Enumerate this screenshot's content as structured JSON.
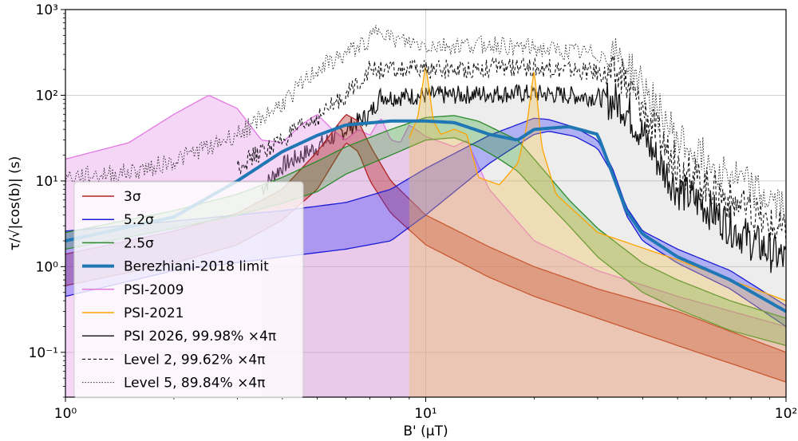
{
  "chart_data": {
    "type": "line",
    "title": "",
    "xlabel": "B' (μT)",
    "ylabel": "τ/√|cos(b)| (s)",
    "xscale": "log",
    "yscale": "log",
    "xlim": [
      1,
      100
    ],
    "ylim": [
      0.03,
      1000
    ],
    "grid": true,
    "legend_position": "bottom-left",
    "x_ticks": [
      {
        "value": 1,
        "label": "10⁰"
      },
      {
        "value": 10,
        "label": "10¹"
      },
      {
        "value": 100,
        "label": "10²"
      }
    ],
    "y_ticks": [
      {
        "value": 0.1,
        "label": "10⁻¹"
      },
      {
        "value": 1,
        "label": "10⁰"
      },
      {
        "value": 10,
        "label": "10¹"
      },
      {
        "value": 100,
        "label": "10²"
      },
      {
        "value": 1000,
        "label": "10³"
      }
    ],
    "series": [
      {
        "name": "3σ",
        "kind": "band",
        "color": "#b22222",
        "fill": "#b22222",
        "fill_opacity": 0.38,
        "x": [
          1,
          2,
          3,
          4,
          5,
          6,
          6.5,
          7,
          8,
          10,
          15,
          20,
          30,
          50,
          100
        ],
        "upper": [
          1.4,
          2.6,
          4.2,
          8,
          22,
          60,
          50,
          26,
          10,
          4,
          1.7,
          1.0,
          0.55,
          0.3,
          0.1
        ],
        "lower": [
          0.6,
          1.1,
          1.8,
          3.5,
          8,
          28,
          22,
          10,
          4.2,
          1.8,
          0.75,
          0.45,
          0.25,
          0.12,
          0.045
        ]
      },
      {
        "name": "5.2σ",
        "kind": "band",
        "color": "#1a1ad6",
        "fill": "#3b3bff",
        "fill_opacity": 0.35,
        "x": [
          1,
          2,
          4,
          6,
          8,
          10,
          15,
          20,
          22,
          26,
          30,
          33,
          36,
          40,
          50,
          70,
          100
        ],
        "upper": [
          2.6,
          3.4,
          4.5,
          5.6,
          8,
          14,
          34,
          54,
          52,
          42,
          30,
          14,
          5,
          2.6,
          1.6,
          0.9,
          0.35
        ],
        "lower": [
          0.45,
          0.9,
          1.3,
          1.6,
          2,
          4,
          16,
          35,
          38,
          33,
          24,
          12,
          4,
          2.0,
          1.1,
          0.55,
          0.2
        ]
      },
      {
        "name": "2.5σ",
        "kind": "band",
        "color": "#2a8a2a",
        "fill": "#2ca02c",
        "fill_opacity": 0.3,
        "x": [
          1,
          2,
          3,
          4,
          5,
          6,
          8,
          10,
          12,
          14,
          16,
          18,
          20,
          25,
          30,
          40,
          50,
          70,
          100
        ],
        "upper": [
          2.5,
          4.5,
          7,
          11,
          17,
          25,
          40,
          55,
          58,
          50,
          38,
          30,
          18,
          6,
          2.8,
          1.1,
          0.7,
          0.4,
          0.25
        ],
        "lower": [
          1.6,
          2.8,
          4,
          5.5,
          7.5,
          12,
          20,
          30,
          32,
          25,
          18,
          13,
          8,
          3,
          1.3,
          0.5,
          0.32,
          0.18,
          0.12
        ]
      },
      {
        "name": "Berezhiani-2018 limit",
        "kind": "line",
        "color": "#1f77b4",
        "width": 4,
        "x": [
          1,
          2,
          3,
          4,
          5,
          6,
          8,
          10,
          12,
          15,
          18,
          20,
          25,
          30,
          33,
          36,
          40,
          50,
          70,
          100
        ],
        "y": [
          2,
          3.8,
          10,
          22,
          34,
          45,
          50,
          50,
          48,
          35,
          30,
          40,
          43,
          35,
          12,
          4.5,
          2.4,
          1.3,
          0.7,
          0.3
        ]
      },
      {
        "name": "PSI-2009",
        "kind": "fill_area",
        "color": "#e377e3",
        "fill": "#e58ae5",
        "fill_opacity": 0.35,
        "x": [
          1,
          1.5,
          2,
          2.5,
          3,
          3.5,
          4,
          4.5,
          5,
          5.5,
          6,
          6.5,
          7,
          7.5,
          8,
          8.5,
          9,
          10,
          12,
          13,
          14,
          15,
          20,
          30,
          50,
          100
        ],
        "y": [
          18,
          28,
          60,
          100,
          70,
          30,
          28,
          45,
          60,
          40,
          30,
          40,
          34,
          55,
          30,
          28,
          45,
          33,
          25,
          30,
          15,
          8,
          2,
          0.9,
          0.45,
          0.2
        ]
      },
      {
        "name": "PSI-2021",
        "kind": "fill_area",
        "color": "#ffa500",
        "fill": "#f0c050",
        "fill_opacity": 0.35,
        "x": [
          9,
          9.5,
          10,
          10.5,
          11,
          12,
          13,
          14,
          16,
          18,
          19,
          20,
          21,
          23,
          30,
          50,
          70,
          100
        ],
        "y": [
          32,
          55,
          230,
          50,
          35,
          40,
          35,
          11,
          9,
          16,
          40,
          200,
          25,
          7,
          2.5,
          1.2,
          0.7,
          0.4
        ]
      },
      {
        "name": "PSI 2026, 99.98% ×4π",
        "kind": "noisy_line",
        "color": "#111111",
        "fill": "#9a9a9a",
        "fill_opacity": 0.18,
        "width": 1.3,
        "dash": "",
        "x": [
          3.5,
          4,
          5,
          6,
          7,
          7.5,
          8,
          10,
          12,
          15,
          20,
          25,
          30,
          35,
          40,
          45,
          50,
          60,
          70,
          80,
          90,
          100
        ],
        "y": [
          8,
          15,
          25,
          40,
          60,
          100,
          95,
          100,
          100,
          105,
          105,
          100,
          95,
          80,
          35,
          15,
          8,
          5,
          3,
          2,
          1.5,
          1.2
        ]
      },
      {
        "name": "Level 2, 99.62% ×4π",
        "kind": "noisy_line",
        "color": "#111111",
        "width": 1.1,
        "dash": "4,3",
        "x": [
          3,
          4,
          5,
          6,
          7,
          8,
          10,
          12,
          15,
          20,
          25,
          30,
          35,
          40,
          45,
          50,
          60,
          70,
          80,
          90,
          100
        ],
        "y": [
          15,
          30,
          55,
          100,
          200,
          195,
          200,
          200,
          210,
          210,
          200,
          185,
          160,
          70,
          30,
          15,
          9,
          6,
          4,
          3,
          2.4
        ]
      },
      {
        "name": "Level 5, 89.84% ×4π",
        "kind": "noisy_line",
        "color": "#333333",
        "width": 1.0,
        "dash": "1.5,2",
        "x": [
          1,
          1.5,
          2,
          3,
          4,
          5,
          6,
          7,
          7.5,
          8,
          10,
          12,
          15,
          20,
          25,
          30,
          35,
          40,
          45,
          50,
          60,
          70,
          80,
          90,
          100
        ],
        "y": [
          11,
          12.5,
          17,
          35,
          80,
          200,
          300,
          450,
          650,
          450,
          380,
          380,
          400,
          350,
          320,
          300,
          260,
          130,
          60,
          30,
          18,
          12,
          8,
          6,
          4.5
        ]
      }
    ]
  }
}
